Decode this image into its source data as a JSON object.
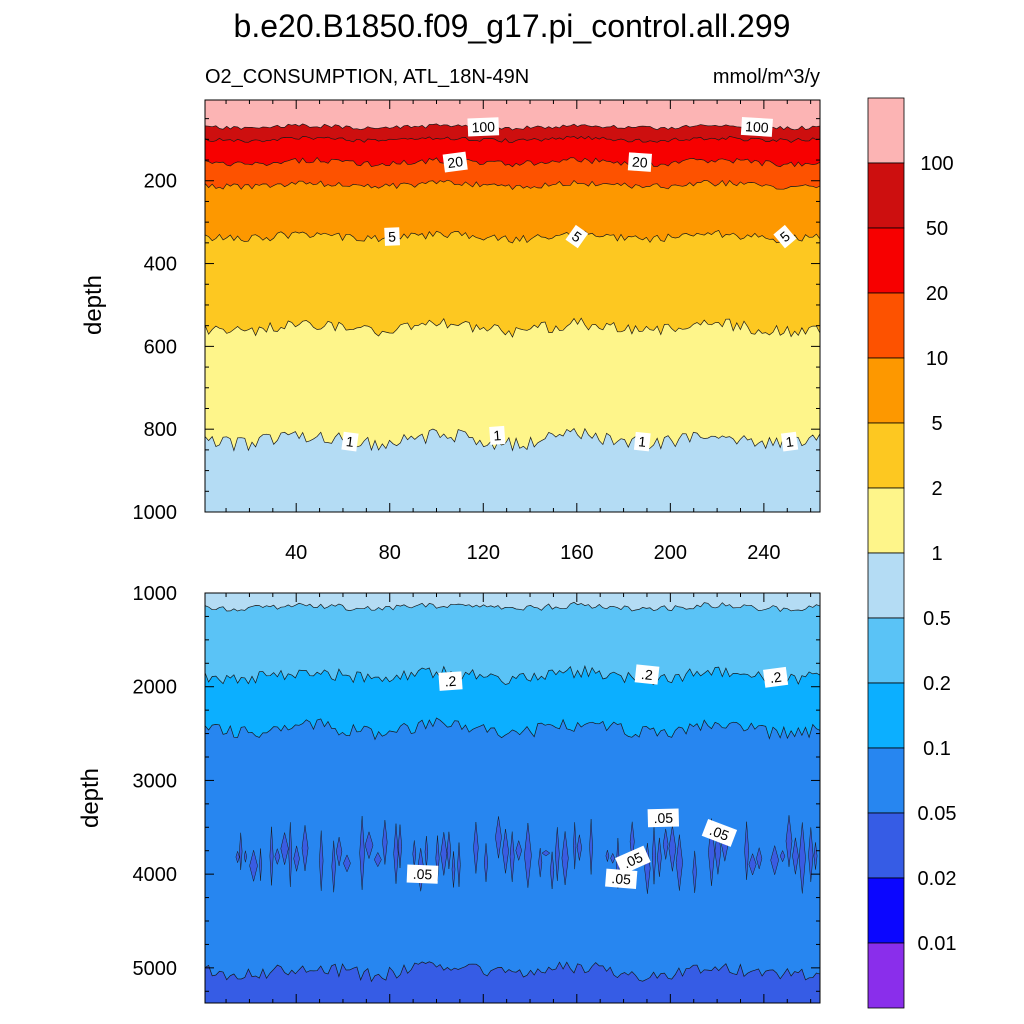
{
  "chart_data": [
    {
      "type": "contour",
      "panel": "upper",
      "title": "b.e20.B1850.f09_g17.pi_control.all.299",
      "left_subtitle": "O2_CONSUMPTION, ATL_18N-49N",
      "right_subtitle": "mmol/m^3/y",
      "xlabel": "",
      "ylabel": "depth",
      "xlim": [
        1,
        264
      ],
      "ylim": [
        1000,
        5
      ],
      "xticks": [
        40,
        80,
        120,
        160,
        200,
        240
      ],
      "yticks": [
        200,
        400,
        600,
        800,
        1000
      ],
      "contour_depths": [
        {
          "level": 100,
          "depth": 70
        },
        {
          "level": 50,
          "depth": 100
        },
        {
          "level": 20,
          "depth": 155
        },
        {
          "level": 10,
          "depth": 210
        },
        {
          "level": 5,
          "depth": 335
        },
        {
          "level": 2,
          "depth": 555
        },
        {
          "level": 1,
          "depth": 825
        }
      ],
      "contour_labels": [
        {
          "text": "100",
          "x": 120,
          "depth": 70
        },
        {
          "text": "100",
          "x": 237,
          "depth": 70
        },
        {
          "text": "20",
          "x": 108,
          "depth": 155
        },
        {
          "text": "20",
          "x": 187,
          "depth": 155
        },
        {
          "text": "5",
          "x": 81,
          "depth": 335
        },
        {
          "text": "5",
          "x": 160,
          "depth": 335
        },
        {
          "text": "5",
          "x": 249,
          "depth": 335
        },
        {
          "text": "1",
          "x": 63,
          "depth": 830
        },
        {
          "text": "1",
          "x": 126,
          "depth": 815
        },
        {
          "text": "1",
          "x": 188,
          "depth": 830
        },
        {
          "text": "1",
          "x": 251,
          "depth": 830
        }
      ]
    },
    {
      "type": "contour",
      "panel": "lower",
      "xlabel": "",
      "ylabel": "depth",
      "xlim": [
        1,
        264
      ],
      "ylim": [
        5375,
        1000
      ],
      "xticks": [
        40,
        80,
        120,
        160,
        200,
        240
      ],
      "yticks": [
        1000,
        2000,
        3000,
        4000,
        5000
      ],
      "contour_depths": [
        {
          "level": 0.5,
          "depth": 1150
        },
        {
          "level": 0.2,
          "depth": 1880
        },
        {
          "level": 0.1,
          "depth": 2450
        },
        {
          "level": 0.05,
          "depth": 5030
        }
      ],
      "deep_band": {
        "level": 0.05,
        "top": 3500,
        "bottom": 4100
      },
      "contour_labels": [
        {
          "text": ".2",
          "x": 106,
          "depth": 1940
        },
        {
          "text": ".2",
          "x": 190,
          "depth": 1870
        },
        {
          "text": ".2",
          "x": 245,
          "depth": 1900
        },
        {
          "text": ".05",
          "x": 94,
          "depth": 4000
        },
        {
          "text": ".05",
          "x": 197,
          "depth": 3400
        },
        {
          "text": ".05",
          "x": 221,
          "depth": 3560
        },
        {
          "text": ".05",
          "x": 184,
          "depth": 3850
        },
        {
          "text": ".05",
          "x": 179,
          "depth": 4050
        }
      ]
    }
  ],
  "colorbar": {
    "levels": [
      "100",
      "50",
      "20",
      "10",
      "5",
      "2",
      "1",
      "0.5",
      "0.2",
      "0.1",
      "0.05",
      "0.02",
      "0.01"
    ],
    "colors": [
      "#fcb4b4",
      "#cd0f0f",
      "#f70000",
      "#fd5200",
      "#fd9800",
      "#fdc821",
      "#fef58a",
      "#b4dcf4",
      "#5ac3f6",
      "#0cafff",
      "#2786f0",
      "#365ce5",
      "#0b06ff",
      "#8a2eeb"
    ]
  }
}
